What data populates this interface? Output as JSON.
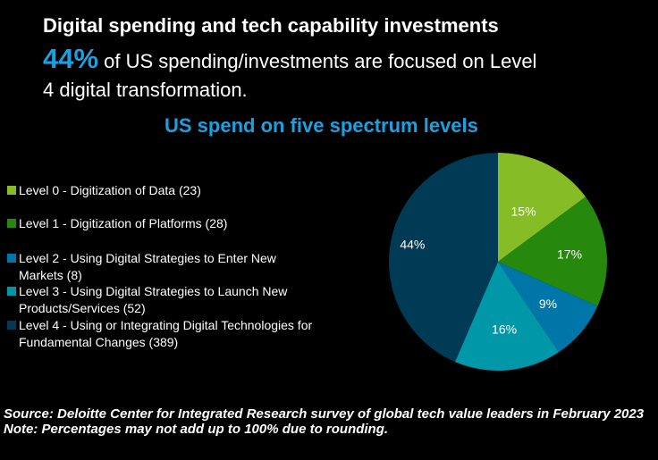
{
  "header": {
    "title": "Digital spending and tech capability investments",
    "highlight": "44%",
    "subtitle": " of US spending/investments are focused on Level 4 digital transformation."
  },
  "chart_data": {
    "type": "pie",
    "title": "US spend on five spectrum levels",
    "legend_position": "left",
    "slices": [
      {
        "label": "Level 0 - Digitization of Data (23)",
        "value": 15,
        "data_label": "15%",
        "color": "#86bc25"
      },
      {
        "label": "Level 1 - Digitization of Platforms (28)",
        "value": 17,
        "data_label": "17%",
        "color": "#26890d"
      },
      {
        "label": "Level 2 - Using Digital Strategies to Enter New Markets (8)",
        "value": 9,
        "data_label": "9%",
        "color": "#0076a8"
      },
      {
        "label": "Level 3 - Using Digital Strategies to Launch New Products/Services (52)",
        "value": 16,
        "data_label": "16%",
        "color": "#0097a9"
      },
      {
        "label": "Level 4 - Using or Integrating Digital Technologies for Fundamental Changes (389)",
        "value": 44,
        "data_label": "44%",
        "color": "#013a54"
      }
    ]
  },
  "footer": {
    "source": "Source: Deloitte Center for Integrated Research survey of global tech value leaders in February 2023",
    "note": "Note: Percentages may not add up to 100% due to rounding."
  }
}
